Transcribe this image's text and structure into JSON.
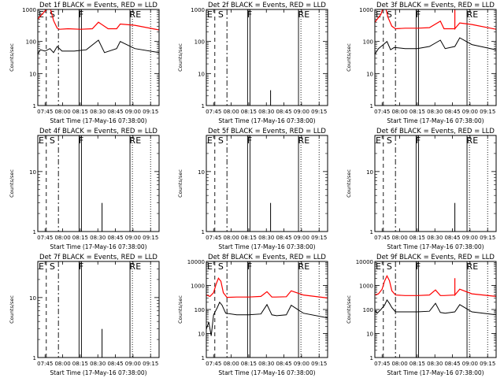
{
  "chart_data": [
    {
      "type": "line",
      "title": "Det 1f BLACK = Events, RED = LLD",
      "ylabel": "Counts/sec",
      "xlabel": "Start Time (17-May-16 07:38:00)",
      "yscale": "log",
      "ylim": [
        1,
        1000
      ],
      "yticks": [
        {
          "value": 1,
          "label": "1"
        },
        {
          "value": 10,
          "label": "10"
        },
        {
          "value": 100,
          "label": "100"
        },
        {
          "value": 1000,
          "label": "1000"
        }
      ],
      "xtick_labels": [
        "07:45",
        "08:00",
        "08:15",
        "08:30",
        "08:45",
        "09:00",
        "09:15"
      ],
      "markers": [
        "E",
        "S",
        "F",
        "R",
        "E"
      ],
      "series": [
        {
          "color": "#ff0000",
          "x": [
            0,
            6,
            10,
            13,
            16,
            18,
            25,
            35,
            45,
            50,
            58,
            65,
            68,
            80,
            100
          ],
          "y": [
            500,
            900,
            1200,
            450,
            260,
            240,
            250,
            240,
            250,
            400,
            250,
            250,
            350,
            320,
            230
          ]
        },
        {
          "color": "#000000",
          "x": [
            0,
            2,
            6,
            10,
            13,
            16,
            20,
            30,
            40,
            50,
            55,
            65,
            68,
            80,
            100
          ],
          "y": [
            40,
            55,
            50,
            60,
            45,
            70,
            50,
            50,
            55,
            110,
            45,
            60,
            100,
            60,
            45
          ]
        }
      ]
    },
    {
      "type": "line",
      "title": "Det 2f BLACK = Events, RED = LLD",
      "ylabel": "Counts/sec",
      "xlabel": "Start Time (17-May-16 07:38:00)",
      "yscale": "log",
      "ylim": [
        1,
        1000
      ],
      "yticks": [
        {
          "value": 1,
          "label": "1"
        },
        {
          "value": 10,
          "label": "10"
        },
        {
          "value": 100,
          "label": "100"
        },
        {
          "value": 1000,
          "label": "1000"
        }
      ],
      "xtick_labels": [
        "07:45",
        "08:00",
        "08:15",
        "08:30",
        "08:45",
        "09:00",
        "09:15"
      ],
      "markers": [
        "E",
        "S",
        "F",
        "R",
        "E"
      ],
      "series": [
        {
          "color": "#000000",
          "x": [
            53,
            53
          ],
          "y": [
            1,
            3
          ]
        }
      ]
    },
    {
      "type": "line",
      "title": "Det 3f BLACK = Events, RED = LLD",
      "ylabel": "Counts/sec",
      "xlabel": "Start Time (17-May-16 07:38:00)",
      "yscale": "log",
      "ylim": [
        1,
        1000
      ],
      "yticks": [
        {
          "value": 1,
          "label": "1"
        },
        {
          "value": 10,
          "label": "10"
        },
        {
          "value": 100,
          "label": "100"
        },
        {
          "value": 1000,
          "label": "1000"
        }
      ],
      "xtick_labels": [
        "07:45",
        "08:00",
        "08:15",
        "08:30",
        "08:45",
        "09:00",
        "09:15"
      ],
      "markers": [
        "E",
        "S",
        "F",
        "R",
        "E"
      ],
      "series": [
        {
          "color": "#ff0000",
          "x": [
            0,
            5,
            8,
            11,
            14,
            17,
            25,
            35,
            45,
            54,
            57,
            66,
            66,
            66,
            70,
            80,
            100
          ],
          "y": [
            400,
            700,
            1500,
            550,
            300,
            250,
            260,
            260,
            270,
            430,
            250,
            250,
            1000,
            250,
            380,
            340,
            240
          ]
        },
        {
          "color": "#000000",
          "x": [
            0,
            3,
            7,
            10,
            13,
            16,
            25,
            35,
            45,
            54,
            58,
            66,
            70,
            80,
            100
          ],
          "y": [
            40,
            60,
            80,
            100,
            55,
            65,
            60,
            60,
            70,
            110,
            60,
            70,
            130,
            80,
            55
          ]
        }
      ]
    },
    {
      "type": "line",
      "title": "Det 4f BLACK = Events, RED = LLD",
      "ylabel": "Counts/sec",
      "xlabel": "Start Time (17-May-16 07:38:00)",
      "yscale": "log",
      "ylim": [
        1,
        40
      ],
      "yticks": [
        {
          "value": 1,
          "label": "1"
        },
        {
          "value": 10,
          "label": "10"
        }
      ],
      "xtick_labels": [
        "07:45",
        "08:00",
        "08:15",
        "08:30",
        "08:45",
        "09:00",
        "09:15"
      ],
      "markers": [
        "E",
        "S",
        "F",
        "R",
        "E"
      ],
      "series": [
        {
          "color": "#000000",
          "x": [
            53,
            53
          ],
          "y": [
            1,
            3
          ]
        }
      ]
    },
    {
      "type": "line",
      "title": "Det 5f BLACK = Events, RED = LLD",
      "ylabel": "Counts/sec",
      "xlabel": "Start Time (17-May-16 07:38:00)",
      "yscale": "log",
      "ylim": [
        1,
        40
      ],
      "yticks": [
        {
          "value": 1,
          "label": "1"
        },
        {
          "value": 10,
          "label": "10"
        }
      ],
      "xtick_labels": [
        "07:45",
        "08:00",
        "08:15",
        "08:30",
        "08:45",
        "09:00",
        "09:15"
      ],
      "markers": [
        "E",
        "S",
        "F",
        "R",
        "E"
      ],
      "series": [
        {
          "color": "#000000",
          "x": [
            53,
            53
          ],
          "y": [
            1,
            3
          ]
        }
      ]
    },
    {
      "type": "line",
      "title": "Det 6f BLACK = Events, RED = LLD",
      "ylabel": "Counts/sec",
      "xlabel": "Start Time (17-May-16 07:38:00)",
      "yscale": "log",
      "ylim": [
        1,
        40
      ],
      "yticks": [
        {
          "value": 1,
          "label": "1"
        },
        {
          "value": 10,
          "label": "10"
        }
      ],
      "xtick_labels": [
        "07:45",
        "08:00",
        "08:15",
        "08:30",
        "08:45",
        "09:00",
        "09:15"
      ],
      "markers": [
        "E",
        "S",
        "F",
        "R",
        "E"
      ],
      "series": [
        {
          "color": "#000000",
          "x": [
            66,
            66
          ],
          "y": [
            1,
            3
          ]
        }
      ]
    },
    {
      "type": "line",
      "title": "Det 7f BLACK = Events, RED = LLD",
      "ylabel": "Counts/sec",
      "xlabel": "Start Time (17-May-16 07:38:00)",
      "yscale": "log",
      "ylim": [
        1,
        40
      ],
      "yticks": [
        {
          "value": 1,
          "label": "1"
        },
        {
          "value": 10,
          "label": "10"
        }
      ],
      "xtick_labels": [
        "07:45",
        "08:00",
        "08:15",
        "08:30",
        "08:45",
        "09:00",
        "09:15"
      ],
      "markers": [
        "E",
        "S",
        "F",
        "R",
        "E"
      ],
      "series": [
        {
          "color": "#000000",
          "x": [
            53,
            53
          ],
          "y": [
            1,
            3
          ]
        }
      ]
    },
    {
      "type": "line",
      "title": "Det 8f BLACK = Events, RED = LLD",
      "ylabel": "Counts/sec",
      "xlabel": "Start Time (17-May-16 07:38:00)",
      "yscale": "log",
      "ylim": [
        1,
        10000
      ],
      "yticks": [
        {
          "value": 1,
          "label": "1"
        },
        {
          "value": 10,
          "label": "10"
        },
        {
          "value": 100,
          "label": "100"
        },
        {
          "value": 1000,
          "label": "1000"
        },
        {
          "value": 10000,
          "label": "10000"
        }
      ],
      "xtick_labels": [
        "07:45",
        "08:00",
        "08:15",
        "08:30",
        "08:45",
        "09:00",
        "09:15"
      ],
      "markers": [
        "E",
        "S",
        "F",
        "R",
        "E"
      ],
      "series": [
        {
          "color": "#ff0000",
          "x": [
            0,
            3,
            6,
            8,
            10,
            12,
            14,
            17,
            25,
            35,
            45,
            50,
            54,
            57,
            66,
            70,
            80,
            100
          ],
          "y": [
            400,
            350,
            500,
            1100,
            2000,
            1500,
            500,
            320,
            330,
            330,
            350,
            550,
            330,
            330,
            340,
            600,
            400,
            300
          ]
        },
        {
          "color": "#000000",
          "x": [
            0,
            2,
            4,
            6,
            9,
            11,
            13,
            16,
            25,
            35,
            45,
            50,
            54,
            58,
            66,
            70,
            80,
            100
          ],
          "y": [
            15,
            30,
            8,
            60,
            120,
            200,
            150,
            70,
            60,
            60,
            65,
            160,
            60,
            55,
            60,
            150,
            70,
            45
          ]
        }
      ]
    },
    {
      "type": "line",
      "title": "Det 9f BLACK = Events, RED = LLD",
      "ylabel": "Counts/sec",
      "xlabel": "Start Time (17-May-16 07:38:00)",
      "yscale": "log",
      "ylim": [
        1,
        10000
      ],
      "yticks": [
        {
          "value": 1,
          "label": "1"
        },
        {
          "value": 10,
          "label": "10"
        },
        {
          "value": 100,
          "label": "100"
        },
        {
          "value": 1000,
          "label": "1000"
        },
        {
          "value": 10000,
          "label": "10000"
        }
      ],
      "xtick_labels": [
        "07:45",
        "08:00",
        "08:15",
        "08:30",
        "08:45",
        "09:00",
        "09:15"
      ],
      "markers": [
        "E",
        "S",
        "F",
        "R",
        "E"
      ],
      "series": [
        {
          "color": "#ff0000",
          "x": [
            0,
            3,
            6,
            8,
            10,
            12,
            14,
            17,
            25,
            35,
            45,
            50,
            54,
            57,
            66,
            66,
            66,
            70,
            80,
            100
          ],
          "y": [
            400,
            450,
            700,
            1500,
            2500,
            1600,
            600,
            400,
            380,
            380,
            400,
            650,
            380,
            380,
            400,
            2000,
            400,
            700,
            450,
            350
          ]
        },
        {
          "color": "#000000",
          "x": [
            0,
            2,
            5,
            8,
            10,
            12,
            14,
            17,
            25,
            35,
            45,
            50,
            54,
            58,
            66,
            70,
            80,
            100
          ],
          "y": [
            90,
            70,
            100,
            150,
            250,
            180,
            120,
            80,
            80,
            80,
            85,
            180,
            75,
            70,
            80,
            160,
            80,
            60
          ]
        }
      ]
    }
  ]
}
